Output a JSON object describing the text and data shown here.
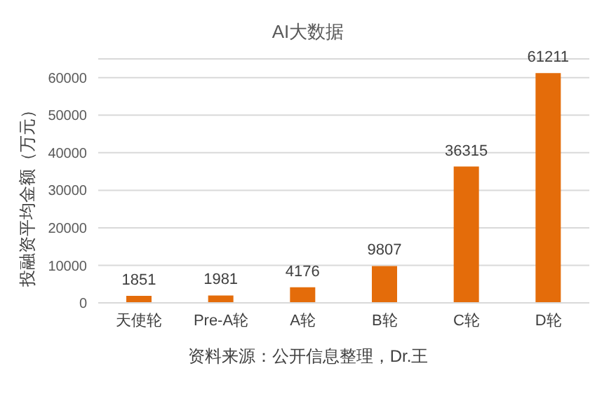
{
  "chart_data": {
    "type": "bar",
    "title": "AI大数据",
    "ylabel": "投融资平均金额（万元）",
    "categories": [
      "天使轮",
      "Pre-A轮",
      "A轮",
      "B轮",
      "C轮",
      "D轮"
    ],
    "values": [
      1851,
      1981,
      4176,
      9807,
      36315,
      61211
    ],
    "color": "#e46c0a",
    "ylim": [
      0,
      65000
    ],
    "yticks": [
      0,
      10000,
      20000,
      30000,
      40000,
      50000,
      60000
    ],
    "grid": "y",
    "data_labels": true,
    "annotations": [
      "资料来源：公开信息整理，Dr.王"
    ]
  }
}
